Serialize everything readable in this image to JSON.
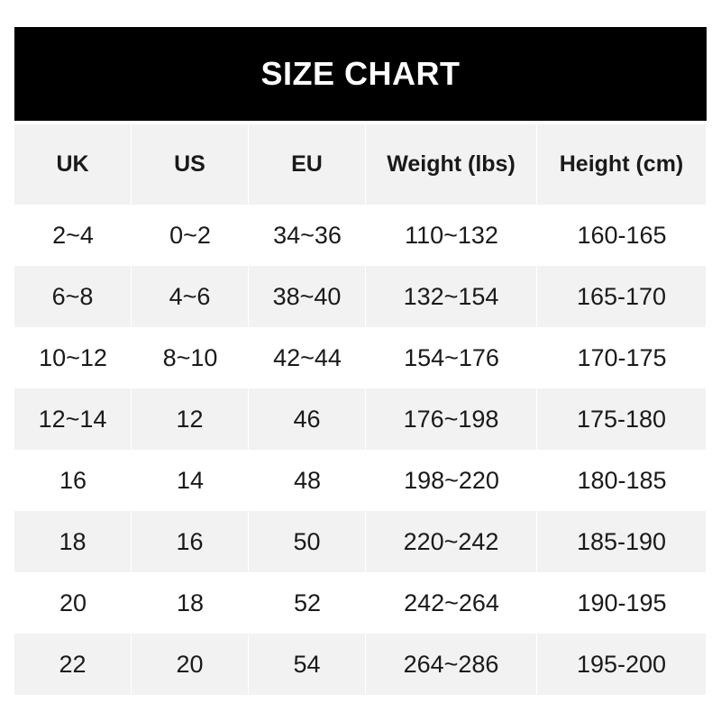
{
  "title": "SIZE CHART",
  "columns": [
    "UK",
    "US",
    "EU",
    "Weight (lbs)",
    "Height (cm)"
  ],
  "rows": [
    [
      "2~4",
      "0~2",
      "34~36",
      "110~132",
      "160-165"
    ],
    [
      "6~8",
      "4~6",
      "38~40",
      "132~154",
      "165-170"
    ],
    [
      "10~12",
      "8~10",
      "42~44",
      "154~176",
      "170-175"
    ],
    [
      "12~14",
      "12",
      "46",
      "176~198",
      "175-180"
    ],
    [
      "16",
      "14",
      "48",
      "198~220",
      "180-185"
    ],
    [
      "18",
      "16",
      "50",
      "220~242",
      "185-190"
    ],
    [
      "20",
      "18",
      "52",
      "242~264",
      "190-195"
    ],
    [
      "22",
      "20",
      "54",
      "264~286",
      "195-200"
    ]
  ],
  "colors": {
    "header_bg": "#000000",
    "stripe": "#f2f2f2"
  }
}
